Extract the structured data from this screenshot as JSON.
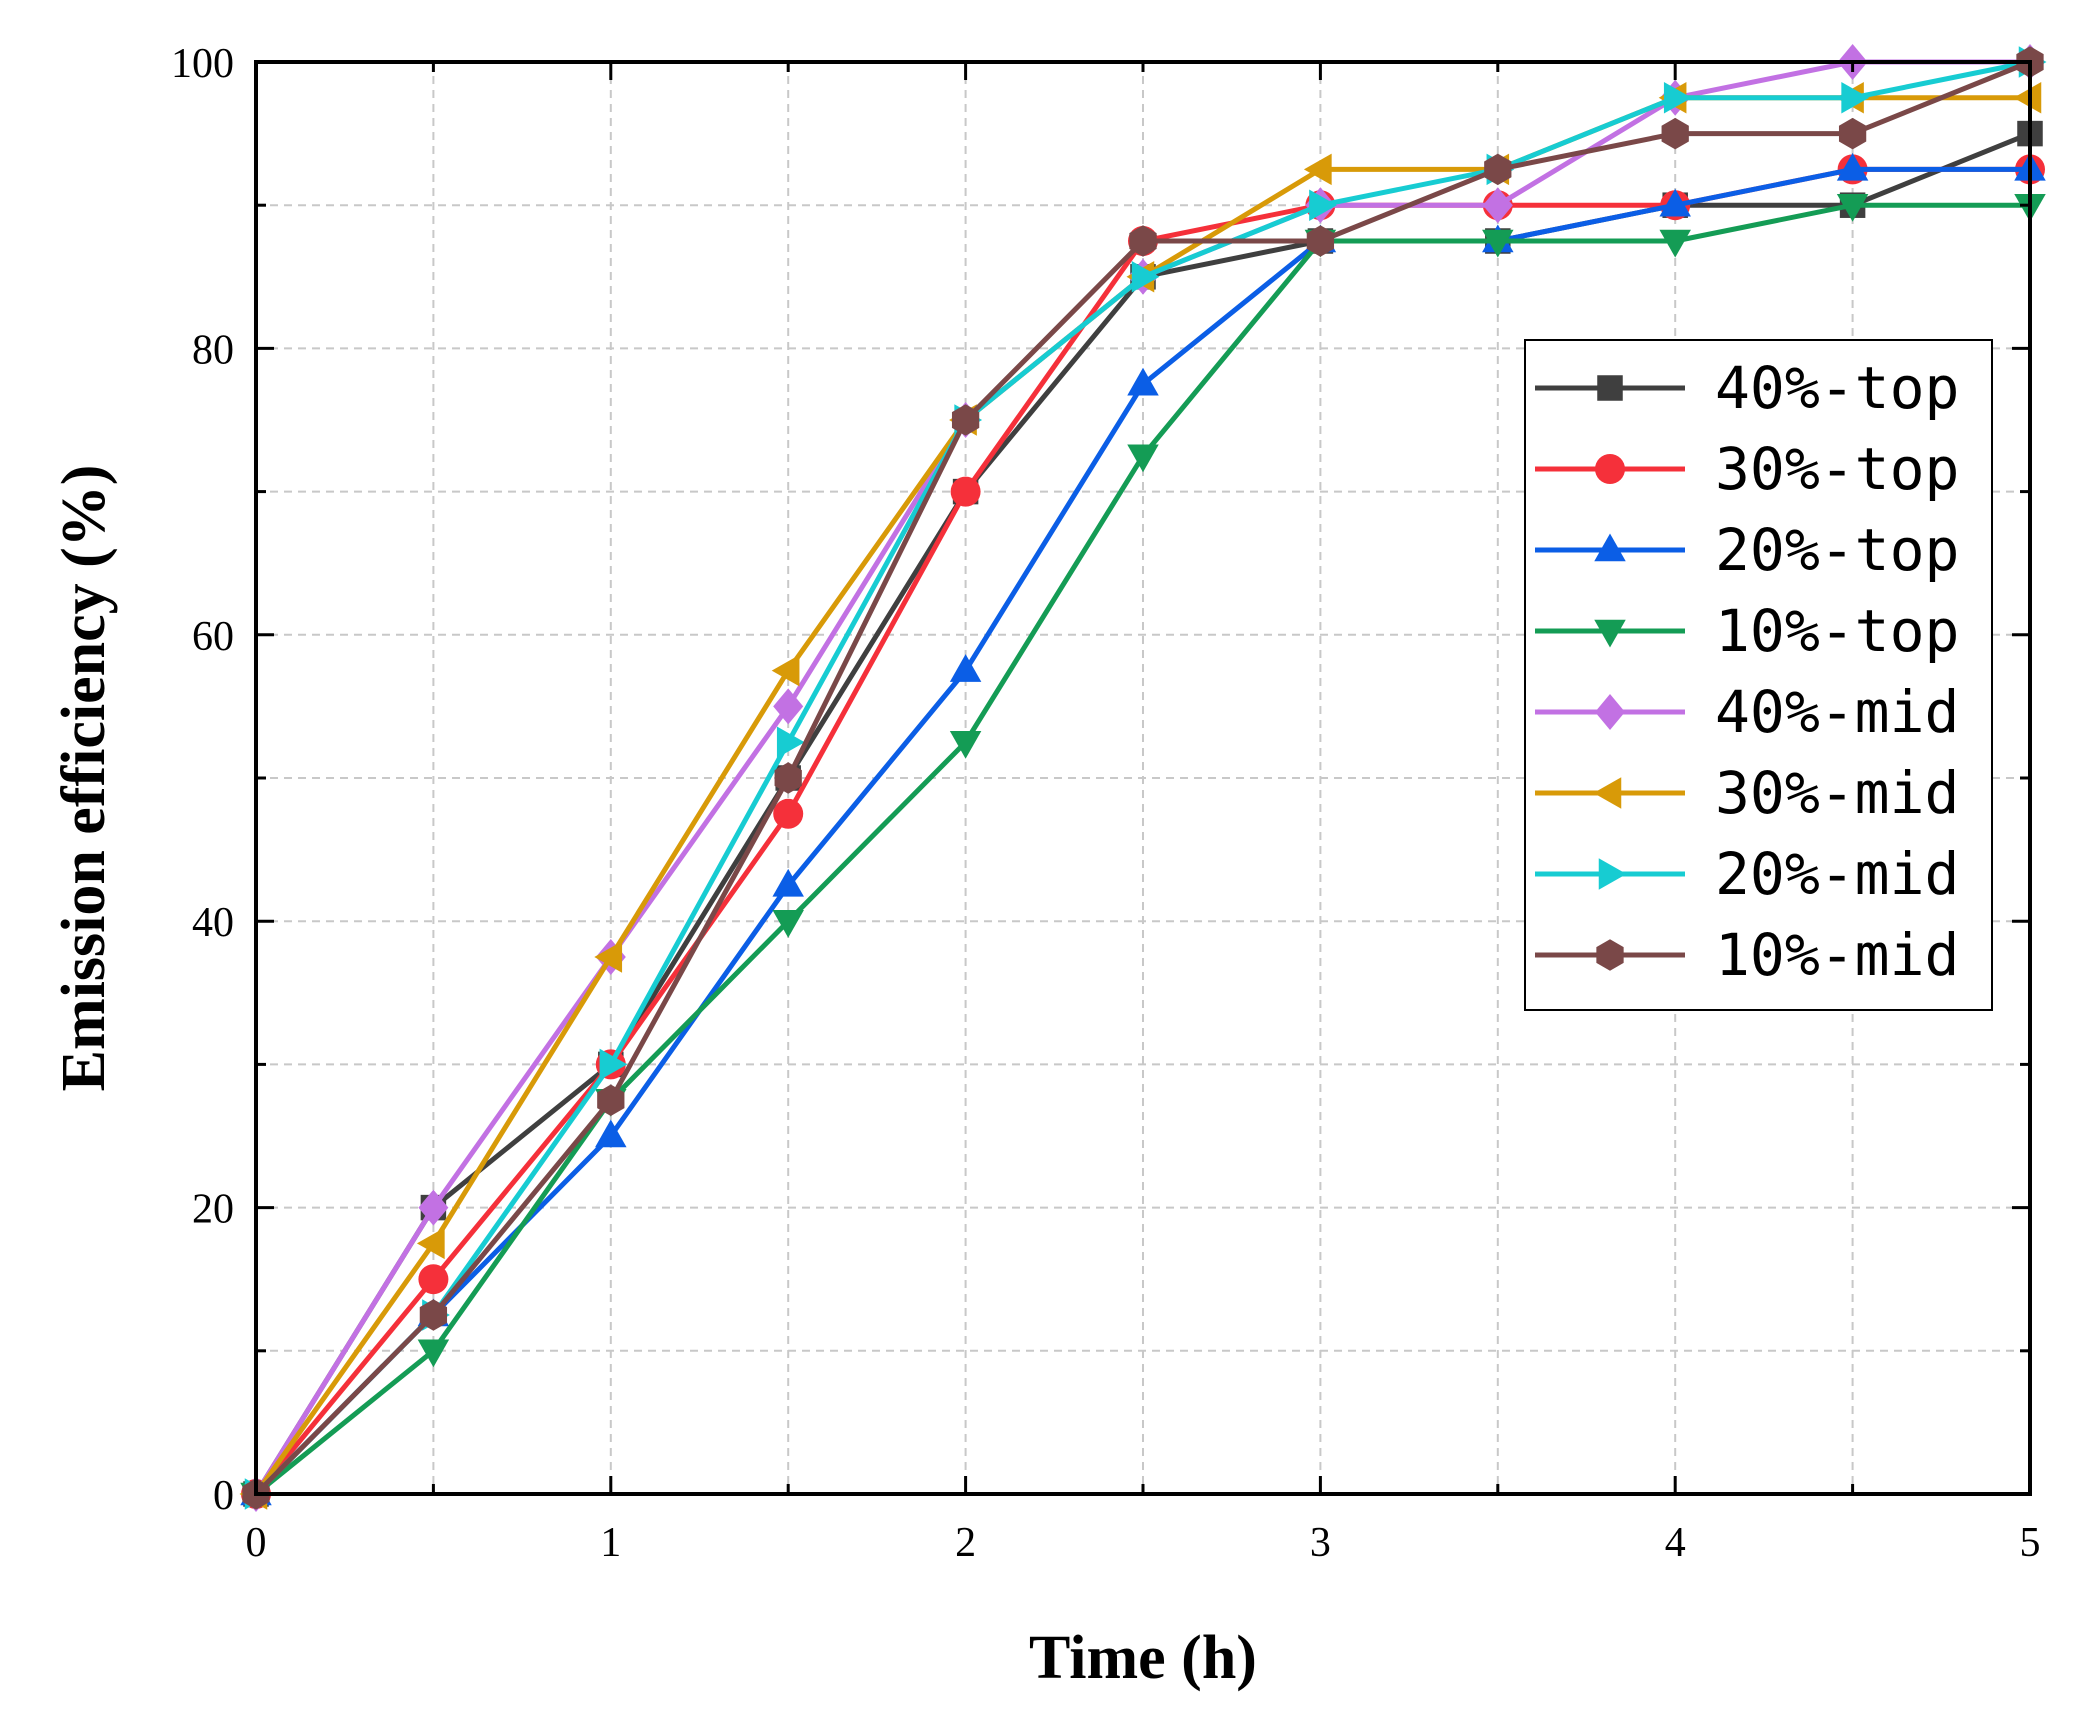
{
  "chart_data": {
    "type": "line",
    "title": "",
    "xlabel": "Time (h)",
    "ylabel": "Emission efficiency (%)",
    "xlim": [
      0,
      5
    ],
    "ylim": [
      0,
      100
    ],
    "xticks": [
      "0",
      "1",
      "2",
      "3",
      "4",
      "5"
    ],
    "yticks": [
      "0",
      "20",
      "40",
      "60",
      "80",
      "100"
    ],
    "grid": true,
    "legend_position": "right",
    "x": [
      0,
      0.5,
      1,
      1.5,
      2,
      2.5,
      3,
      3.5,
      4,
      4.5,
      5
    ],
    "series": [
      {
        "name": "40%-top",
        "color": "#3f3f3f",
        "marker": "square",
        "values": [
          0,
          20,
          30,
          50,
          70,
          85,
          87.5,
          87.5,
          90,
          90,
          95
        ]
      },
      {
        "name": "30%-top",
        "color": "#f5303a",
        "marker": "circle",
        "values": [
          0,
          15,
          30,
          47.5,
          70,
          87.5,
          90,
          90,
          90,
          92.5,
          92.5
        ]
      },
      {
        "name": "20%-top",
        "color": "#0b5ee6",
        "marker": "triangle-up",
        "values": [
          0,
          12.5,
          25,
          42.5,
          57.5,
          77.5,
          87.5,
          87.5,
          90,
          92.5,
          92.5
        ]
      },
      {
        "name": "10%-top",
        "color": "#149c55",
        "marker": "triangle-down",
        "values": [
          0,
          10,
          27.5,
          40,
          52.5,
          72.5,
          87.5,
          87.5,
          87.5,
          90,
          90
        ]
      },
      {
        "name": "40%-mid",
        "color": "#c271e3",
        "marker": "diamond",
        "values": [
          0,
          20,
          37.5,
          55,
          75,
          85,
          90,
          90,
          97.5,
          100,
          100
        ]
      },
      {
        "name": "30%-mid",
        "color": "#d89a08",
        "marker": "triangle-left",
        "values": [
          0,
          17.5,
          37.5,
          57.5,
          75,
          85,
          92.5,
          92.5,
          97.5,
          97.5,
          97.5
        ]
      },
      {
        "name": "20%-mid",
        "color": "#17ccd2",
        "marker": "triangle-right",
        "values": [
          0,
          12.5,
          30,
          52.5,
          75,
          85,
          90,
          92.5,
          97.5,
          97.5,
          100
        ]
      },
      {
        "name": "10%-mid",
        "color": "#7a4848",
        "marker": "hexagon",
        "values": [
          0,
          12.5,
          27.5,
          50,
          75,
          87.5,
          87.5,
          92.5,
          95,
          95,
          100
        ]
      }
    ]
  }
}
